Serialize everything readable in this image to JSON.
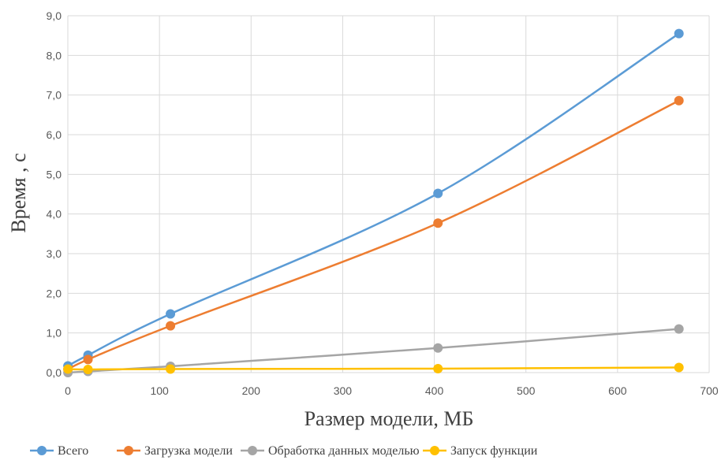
{
  "chart_data": {
    "type": "line",
    "xlabel": "Размер модели, МБ",
    "ylabel": "Время , с",
    "xlim": [
      0,
      700
    ],
    "ylim": [
      0,
      9
    ],
    "xticks": [
      0,
      100,
      200,
      300,
      400,
      500,
      600,
      700
    ],
    "yticks": [
      0,
      1,
      2,
      3,
      4,
      5,
      6,
      7,
      8,
      9
    ],
    "xtick_labels": [
      "0",
      "100",
      "200",
      "300",
      "400",
      "500",
      "600",
      "700"
    ],
    "ytick_labels": [
      "0,0",
      "1,0",
      "2,0",
      "3,0",
      "4,0",
      "5,0",
      "6,0",
      "7,0",
      "8,0",
      "9,0"
    ],
    "grid": true,
    "legend_position": "bottom",
    "series": [
      {
        "name": "Всего",
        "color": "#5b9bd5",
        "x": [
          0.1,
          22,
          112,
          404,
          667
        ],
        "y": [
          0.17,
          0.44,
          1.48,
          4.52,
          8.55
        ]
      },
      {
        "name": "Загрузка модели",
        "color": "#ed7d31",
        "x": [
          0.1,
          22,
          112,
          404,
          667
        ],
        "y": [
          0.08,
          0.33,
          1.18,
          3.77,
          6.86
        ]
      },
      {
        "name": "Обработка данных моделью",
        "color": "#a5a5a5",
        "x": [
          0.1,
          22,
          112,
          404,
          667
        ],
        "y": [
          0.0,
          0.03,
          0.16,
          0.62,
          1.1
        ]
      },
      {
        "name": "Запуск функции",
        "color": "#ffc000",
        "x": [
          0.1,
          22,
          112,
          404,
          667
        ],
        "y": [
          0.09,
          0.08,
          0.09,
          0.1,
          0.13
        ]
      }
    ]
  }
}
